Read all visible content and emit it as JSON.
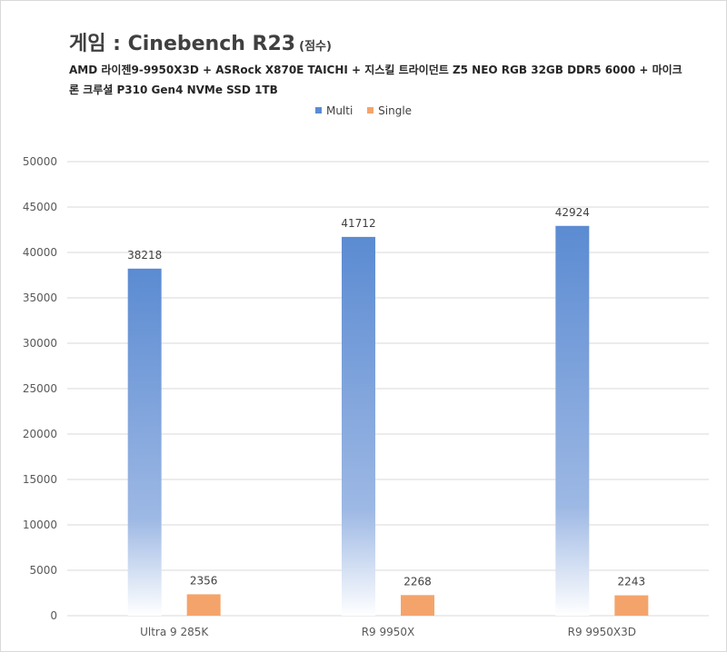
{
  "chart_data": {
    "type": "bar",
    "title_main": "게임 : Cinebench R23",
    "title_unit": "(점수)",
    "subtitle": "AMD 라이젠9-9950X3D + ASRock X870E TAICHI + 지스킬 트라이던트 Z5 NEO RGB 32GB DDR5 6000 + 마이크론 크루셜 P310 Gen4 NVMe SSD 1TB",
    "categories": [
      "Ultra 9 285K",
      "R9 9950X",
      "R9 9950X3D"
    ],
    "series": [
      {
        "name": "Multi",
        "values": [
          38218,
          41712,
          42924
        ],
        "color": "#5b8bd2"
      },
      {
        "name": "Single",
        "values": [
          2356,
          2268,
          2243
        ],
        "color": "#f4a46b"
      }
    ],
    "ylim": [
      0,
      50000
    ],
    "yticks": [
      "0",
      "5000",
      "10000",
      "15000",
      "20000",
      "25000",
      "30000",
      "35000",
      "40000",
      "45000",
      "50000"
    ],
    "grid": true,
    "legend_position": "top"
  }
}
